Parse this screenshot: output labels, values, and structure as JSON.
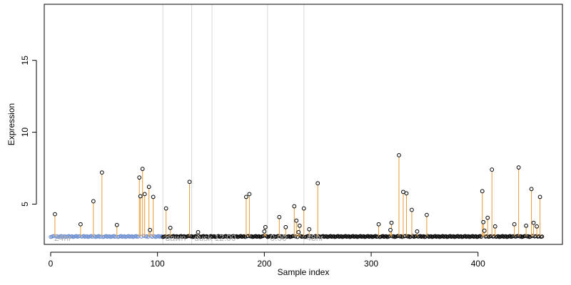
{
  "chart_data": {
    "type": "scatter",
    "xlabel": "Sample index",
    "ylabel": "Expression",
    "xlim": [
      -6,
      479
    ],
    "ylim": [
      2.2,
      18.9
    ],
    "x_ticks": [
      0,
      100,
      200,
      300,
      400
    ],
    "y_ticks": [
      5,
      10,
      15
    ],
    "baseline": 2.75,
    "regions": [
      {
        "label": "24hr",
        "x": 2
      },
      {
        "label": "dawn",
        "x": 106
      },
      {
        "label": "dusk",
        "x": 133
      },
      {
        "label": "12:00",
        "x": 152
      },
      {
        "label": "0:00",
        "x": 204
      },
      {
        "label": "48hr",
        "x": 238
      }
    ],
    "region_lines_x": [
      105,
      132,
      151,
      203,
      237
    ],
    "highlight_ranges": [
      [
        0,
        104
      ]
    ],
    "series": [
      {
        "points": [
          [
            4,
            4.3
          ],
          [
            28,
            3.6
          ],
          [
            40,
            5.2
          ],
          [
            48,
            7.2
          ],
          [
            62,
            3.55
          ],
          [
            83,
            6.85
          ],
          [
            84,
            5.55
          ],
          [
            86,
            7.45
          ],
          [
            88,
            5.7
          ],
          [
            92,
            6.2
          ],
          [
            93,
            3.2
          ],
          [
            96,
            5.5
          ],
          [
            108,
            4.7
          ],
          [
            112,
            3.35
          ],
          [
            130,
            6.55
          ],
          [
            138,
            3.05
          ],
          [
            183,
            5.5
          ],
          [
            186,
            5.7
          ],
          [
            200,
            3.1
          ],
          [
            201,
            3.4
          ],
          [
            214,
            4.1
          ],
          [
            220,
            3.4
          ],
          [
            228,
            4.85
          ],
          [
            230,
            3.85
          ],
          [
            232,
            3.05
          ],
          [
            233,
            3.5
          ],
          [
            237,
            4.7
          ],
          [
            242,
            3.25
          ],
          [
            250,
            6.45
          ],
          [
            307,
            3.6
          ],
          [
            318,
            3.2
          ],
          [
            319,
            3.7
          ],
          [
            326,
            8.4
          ],
          [
            330,
            5.85
          ],
          [
            333,
            5.75
          ],
          [
            338,
            4.6
          ],
          [
            343,
            3.1
          ],
          [
            352,
            4.25
          ],
          [
            404,
            5.9
          ],
          [
            405,
            3.75
          ],
          [
            406,
            3.15
          ],
          [
            409,
            4.05
          ],
          [
            413,
            7.4
          ],
          [
            416,
            3.45
          ],
          [
            434,
            3.6
          ],
          [
            438,
            7.55
          ],
          [
            445,
            3.5
          ],
          [
            450,
            6.05
          ],
          [
            452,
            3.7
          ],
          [
            455,
            3.45
          ],
          [
            458,
            5.5
          ]
        ]
      }
    ],
    "colors": {
      "stem": "#e69a2e",
      "point_highlight": "#6e8fd0",
      "point": "#000000",
      "gridline": "#d9d9d9",
      "region_label": "#b0b0b0"
    }
  }
}
